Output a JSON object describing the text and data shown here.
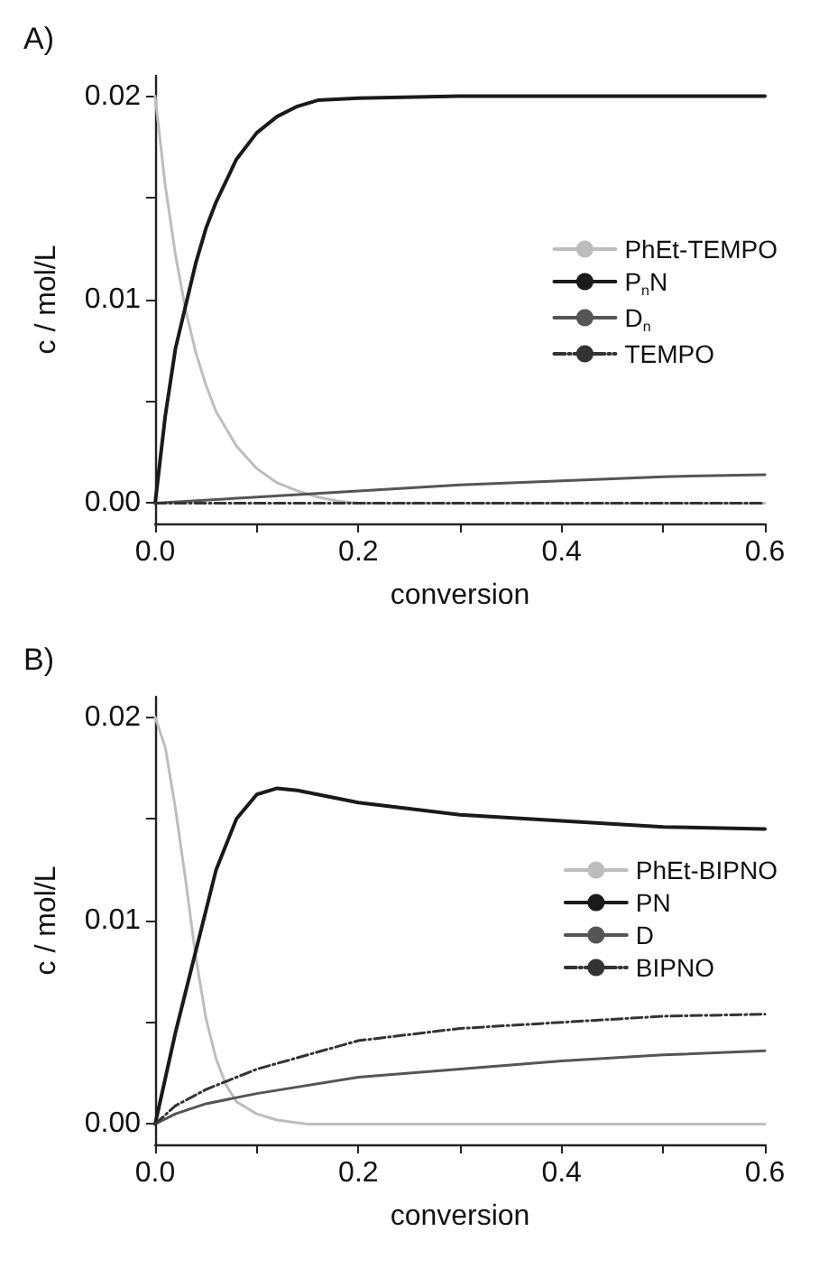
{
  "chart_data": [
    {
      "type": "line",
      "title": "A)",
      "xlabel": "conversion",
      "ylabel": "c / mol/L",
      "xlim": [
        0,
        0.6
      ],
      "ylim": [
        -0.001,
        0.021
      ],
      "xticks": [
        {
          "value": 0,
          "label": "0.0"
        },
        {
          "value": 0.1,
          "label": null
        },
        {
          "value": 0.2,
          "label": "0.2"
        },
        {
          "value": 0.3,
          "label": null
        },
        {
          "value": 0.4,
          "label": "0.4"
        },
        {
          "value": 0.5,
          "label": null
        },
        {
          "value": 0.6,
          "label": "0.6"
        }
      ],
      "yticks": [
        {
          "value": 0,
          "label": "0.00"
        },
        {
          "value": 0.005,
          "label": null
        },
        {
          "value": 0.01,
          "label": "0.01"
        },
        {
          "value": 0.015,
          "label": null
        },
        {
          "value": 0.02,
          "label": "0.02"
        }
      ],
      "grid": false,
      "legend": "right",
      "marker": "none",
      "series": [
        {
          "name": "PhEt-TEMPO",
          "color": "#bdbdbd",
          "x": [
            0,
            0.01,
            0.02,
            0.03,
            0.04,
            0.05,
            0.06,
            0.08,
            0.1,
            0.12,
            0.14,
            0.16,
            0.18,
            0.2,
            0.4,
            0.6
          ],
          "values": [
            0.02,
            0.0156,
            0.0122,
            0.0095,
            0.0074,
            0.0058,
            0.0045,
            0.0028,
            0.0017,
            0.001,
            0.0006,
            0.0003,
            0.0001,
            0,
            0,
            0
          ]
        },
        {
          "name": "P$_{n}$N",
          "color": "#1a1a1a",
          "x": [
            0,
            0.01,
            0.02,
            0.03,
            0.04,
            0.05,
            0.06,
            0.08,
            0.1,
            0.12,
            0.14,
            0.16,
            0.2,
            0.3,
            0.6
          ],
          "values": [
            0,
            0.0043,
            0.0076,
            0.0097,
            0.0118,
            0.0135,
            0.0148,
            0.0169,
            0.0182,
            0.019,
            0.0195,
            0.0198,
            0.0199,
            0.02,
            0.02
          ]
        },
        {
          "name": "D$_{n}$",
          "color": "#555555",
          "x": [
            0,
            0.1,
            0.2,
            0.3,
            0.4,
            0.5,
            0.6
          ],
          "values": [
            0,
            0.0003,
            0.0006,
            0.0009,
            0.0011,
            0.0013,
            0.0014
          ]
        },
        {
          "name": "TEMPO",
          "color": "#333333",
          "line_style": "dashed",
          "x": [
            0,
            0.3,
            0.6
          ],
          "values": [
            0,
            0,
            0
          ]
        }
      ]
    },
    {
      "type": "line",
      "title": "B)",
      "xlabel": "conversion",
      "ylabel": "c / mol/L",
      "xlim": [
        0,
        0.6
      ],
      "ylim": [
        -0.001,
        0.021
      ],
      "xticks": [
        {
          "value": 0,
          "label": "0.0"
        },
        {
          "value": 0.1,
          "label": null
        },
        {
          "value": 0.2,
          "label": "0.2"
        },
        {
          "value": 0.3,
          "label": null
        },
        {
          "value": 0.4,
          "label": "0.4"
        },
        {
          "value": 0.5,
          "label": null
        },
        {
          "value": 0.6,
          "label": "0.6"
        }
      ],
      "yticks": [
        {
          "value": 0,
          "label": "0.00"
        },
        {
          "value": 0.005,
          "label": null
        },
        {
          "value": 0.01,
          "label": "0.01"
        },
        {
          "value": 0.015,
          "label": null
        },
        {
          "value": 0.02,
          "label": "0.02"
        }
      ],
      "grid": false,
      "legend": "right",
      "marker": "none",
      "series": [
        {
          "name": "PhEt-BIPNO",
          "color": "#bdbdbd",
          "x": [
            0,
            0.01,
            0.02,
            0.03,
            0.04,
            0.05,
            0.06,
            0.07,
            0.08,
            0.1,
            0.12,
            0.15,
            0.2,
            0.6
          ],
          "values": [
            0.02,
            0.0185,
            0.0155,
            0.012,
            0.0082,
            0.0052,
            0.0032,
            0.0019,
            0.0011,
            0.0005,
            0.0002,
            0,
            0,
            0
          ]
        },
        {
          "name": "PN",
          "color": "#1a1a1a",
          "x": [
            0,
            0.02,
            0.04,
            0.06,
            0.08,
            0.1,
            0.12,
            0.14,
            0.2,
            0.3,
            0.4,
            0.5,
            0.6
          ],
          "values": [
            0,
            0.0045,
            0.0085,
            0.0125,
            0.015,
            0.0162,
            0.0165,
            0.0164,
            0.0158,
            0.0152,
            0.0149,
            0.0146,
            0.0145
          ]
        },
        {
          "name": "D",
          "color": "#555555",
          "x": [
            0,
            0.02,
            0.05,
            0.1,
            0.2,
            0.3,
            0.4,
            0.5,
            0.6
          ],
          "values": [
            0,
            0.0005,
            0.001,
            0.0015,
            0.0023,
            0.0027,
            0.0031,
            0.0034,
            0.0036
          ]
        },
        {
          "name": "BIPNO",
          "color": "#333333",
          "line_style": "dashed",
          "x": [
            0,
            0.02,
            0.05,
            0.1,
            0.2,
            0.3,
            0.4,
            0.5,
            0.6
          ],
          "values": [
            0,
            0.0009,
            0.0017,
            0.0027,
            0.0041,
            0.0047,
            0.005,
            0.0053,
            0.0054
          ]
        }
      ]
    }
  ]
}
